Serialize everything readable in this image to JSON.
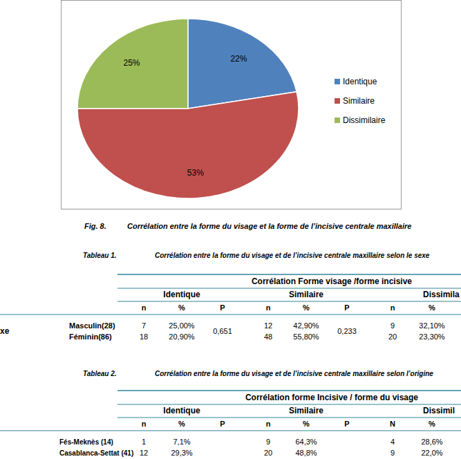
{
  "chart_data": {
    "type": "pie",
    "categories": [
      "Identique",
      "Similaire",
      "Dissimilaire"
    ],
    "values": [
      22,
      53,
      25
    ],
    "value_labels": [
      "22%",
      "53%",
      "25%"
    ],
    "colors": [
      "#4f81bd",
      "#c0504d",
      "#9bbb59"
    ],
    "data_labels": true,
    "legend": "right"
  },
  "figure_caption": {
    "label": "Fig. 8.",
    "text": "Corrélation entre la forme du visage et la forme de l’incisive centrale maxillaire"
  },
  "tables": [
    {
      "label": "Tableau 1.",
      "caption": "Corrélation entre la forme du visage et de l’incisive centrale maxillaire selon le sexe",
      "group_header": "Corrélation Forme visage /forme incisive",
      "columns": [
        "Identique",
        "Similaire",
        "Dissimila"
      ],
      "subheaders": [
        "n",
        "%",
        "P",
        "n",
        "%",
        "P",
        "n",
        "%"
      ],
      "row_group": "xe",
      "rows": [
        {
          "label": "Masculin(28)",
          "cells": [
            "7",
            "25,00%",
            "12",
            "42,90%",
            "9",
            "32,10%"
          ]
        },
        {
          "label": "Féminin(86)",
          "cells": [
            "18",
            "20,90%",
            "48",
            "55,80%",
            "20",
            "23,30%"
          ]
        }
      ],
      "p_values": [
        "0,651",
        "0,233"
      ]
    },
    {
      "label": "Tableau 2.",
      "caption": "Corrélation entre la forme du visage et de l’incisive centrale maxillaire selon l’origine",
      "group_header": "Corrélation forme Incisive / forme du visage",
      "columns": [
        "Identique",
        "Similaire",
        "Dissimil"
      ],
      "subheaders": [
        "n",
        "%",
        "P",
        "n",
        "%",
        "P",
        "N",
        "%"
      ],
      "rows": [
        {
          "label": "Fés-Meknès (14)",
          "cells": [
            "1",
            "7,1%",
            "9",
            "64,3%",
            "4",
            "28,6%"
          ]
        },
        {
          "label": "Casablanca-Settat (41)",
          "cells": [
            "12",
            "29,3%",
            "20",
            "48,8%",
            "9",
            "22,0%"
          ]
        }
      ],
      "p_values": []
    }
  ]
}
